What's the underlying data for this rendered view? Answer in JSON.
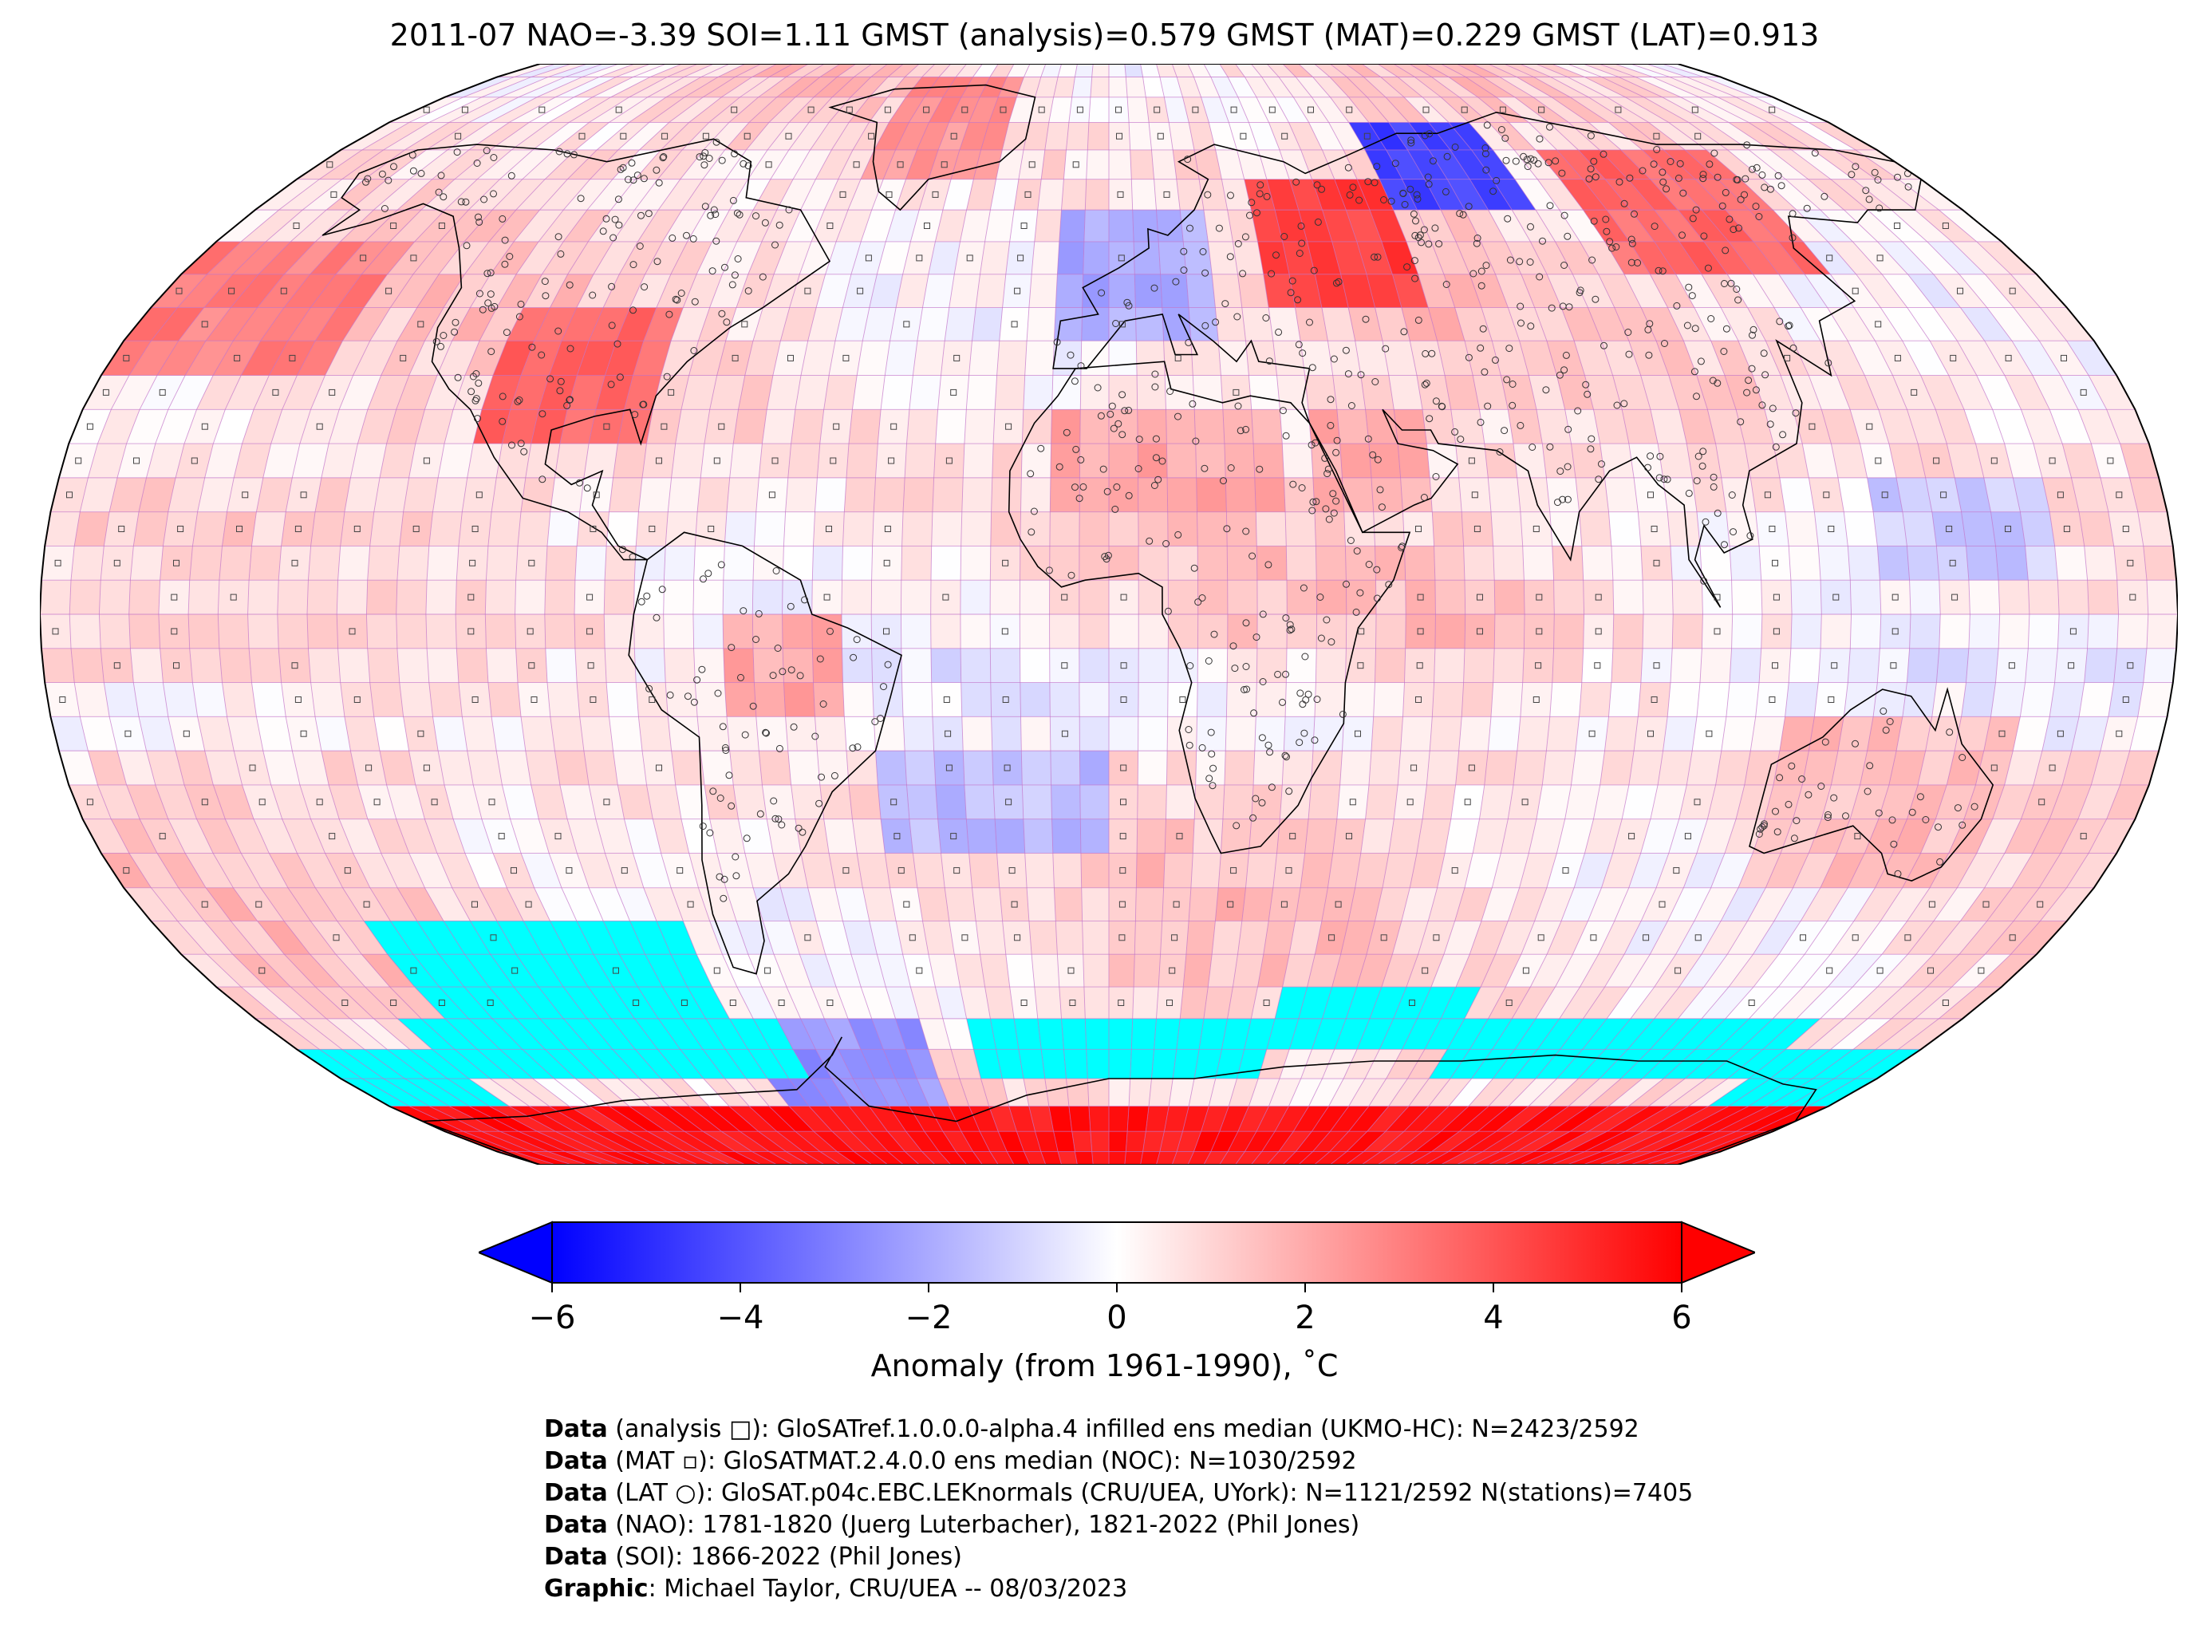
{
  "title": "2011-07 NAO=-3.39 SOI=1.11 GMST (analysis)=0.579 GMST (MAT)=0.229 GMST (LAT)=0.913",
  "colorbar": {
    "label": "Anomaly (from 1961-1990), ˚C",
    "min": -6,
    "max": 6,
    "ticks": [
      "−6",
      "−4",
      "−2",
      "0",
      "2",
      "4",
      "6"
    ],
    "tick_values": [
      -6,
      -4,
      -2,
      0,
      2,
      4,
      6
    ],
    "colors": {
      "low": "#0000ff",
      "mid": "#ffffff",
      "high": "#ff0000",
      "sea_ice": "#00ffff"
    }
  },
  "credits": [
    {
      "key": "Data",
      "text": " (analysis □): GloSATref.1.0.0.0-alpha.4 infilled ens median (UKMO-HC): N=2423/2592"
    },
    {
      "key": "Data",
      "text": " (MAT ▫): GloSATMAT.2.4.0.0 ens median (NOC): N=1030/2592"
    },
    {
      "key": "Data",
      "text": " (LAT ○): GloSAT.p04c.EBC.LEKnormals (CRU/UEA, UYork): N=1121/2592 N(stations)=7405"
    },
    {
      "key": "Data",
      "text": " (NAO): 1781-1820 (Juerg Luterbacher), 1821-2022 (Phil Jones)"
    },
    {
      "key": "Data",
      "text": " (SOI): 1866-2022 (Phil Jones)"
    },
    {
      "key": "Graphic",
      "text": ": Michael Taylor, CRU/UEA -- 08/03/2023"
    }
  ],
  "map_data": {
    "projection": "Robinson",
    "grid_resolution_deg": 5,
    "anomaly_regions": [
      {
        "name": "Central North America",
        "lon": [
          -110,
          -80
        ],
        "lat": [
          25,
          45
        ],
        "value": 3.5
      },
      {
        "name": "Western Russia",
        "lon": [
          30,
          60
        ],
        "lat": [
          45,
          65
        ],
        "value": 4.5
      },
      {
        "name": "West Siberia",
        "lon": [
          60,
          90
        ],
        "lat": [
          60,
          75
        ],
        "value": -4.5
      },
      {
        "name": "Northeast Asia",
        "lon": [
          100,
          140
        ],
        "lat": [
          50,
          70
        ],
        "value": 3.5
      },
      {
        "name": "Western Europe",
        "lon": [
          -10,
          20
        ],
        "lat": [
          40,
          60
        ],
        "value": -2.0
      },
      {
        "name": "Greenland",
        "lon": [
          -55,
          -25
        ],
        "lat": [
          65,
          85
        ],
        "value": 2.5
      },
      {
        "name": "North Pacific",
        "lon": [
          -180,
          -140
        ],
        "lat": [
          35,
          55
        ],
        "value": 3.0
      },
      {
        "name": "North Africa",
        "lon": [
          -10,
          30
        ],
        "lat": [
          15,
          30
        ],
        "value": 2.0
      },
      {
        "name": "Arabia",
        "lon": [
          35,
          55
        ],
        "lat": [
          15,
          30
        ],
        "value": 2.0
      },
      {
        "name": "Amazon",
        "lon": [
          -65,
          -45
        ],
        "lat": [
          -15,
          0
        ],
        "value": 2.0
      },
      {
        "name": "South Atlantic",
        "lon": [
          -40,
          0
        ],
        "lat": [
          -35,
          -20
        ],
        "value": -1.5
      },
      {
        "name": "West Antarctic Peninsula",
        "lon": [
          -80,
          -40
        ],
        "lat": [
          -80,
          -60
        ],
        "value": -2.5
      },
      {
        "name": "Antarctic coast",
        "lon": [
          -180,
          180
        ],
        "lat": [
          -90,
          -75
        ],
        "value": 5.5
      },
      {
        "name": "Southern Ocean Pacific",
        "lon": [
          -150,
          -80
        ],
        "lat": [
          -70,
          -55
        ],
        "value": 1.5
      },
      {
        "name": "Tropical Pacific",
        "lon": [
          -180,
          -100
        ],
        "lat": [
          -10,
          10
        ],
        "value": 0.8
      },
      {
        "name": "Western Pacific",
        "lon": [
          130,
          160
        ],
        "lat": [
          5,
          20
        ],
        "value": -1.2
      },
      {
        "name": "Australia",
        "lon": [
          115,
          155
        ],
        "lat": [
          -40,
          -15
        ],
        "value": 1.5
      }
    ],
    "sea_ice_regions": [
      {
        "lon": [
          -140,
          -80
        ],
        "lat": [
          -60,
          -45
        ]
      },
      {
        "lon": [
          -150,
          -70
        ],
        "lat": [
          -70,
          -60
        ]
      },
      {
        "lon": [
          -180,
          -150
        ],
        "lat": [
          -75,
          -65
        ]
      },
      {
        "lon": [
          -30,
          35
        ],
        "lat": [
          -70,
          -60
        ]
      },
      {
        "lon": [
          35,
          75
        ],
        "lat": [
          -65,
          -55
        ]
      },
      {
        "lon": [
          75,
          150
        ],
        "lat": [
          -70,
          -60
        ]
      },
      {
        "lon": [
          150,
          180
        ],
        "lat": [
          -75,
          -65
        ]
      }
    ]
  }
}
